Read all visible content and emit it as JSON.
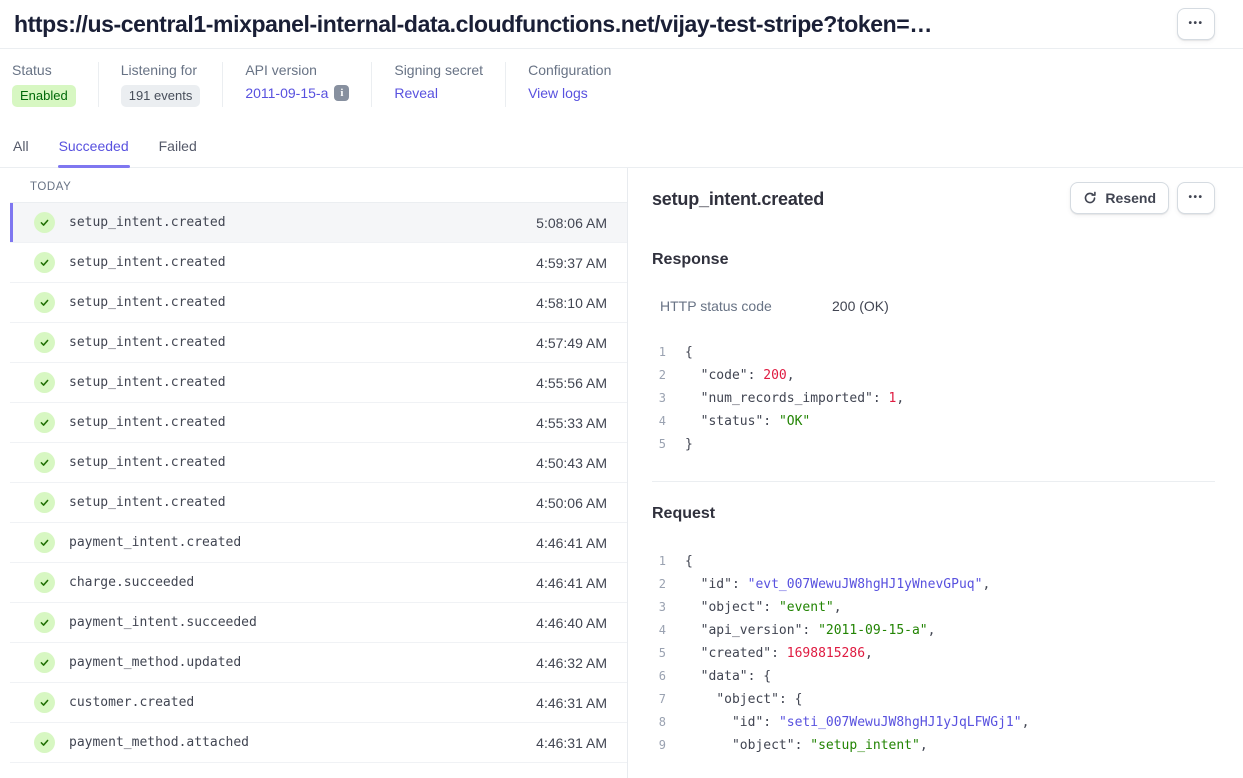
{
  "header": {
    "url": "https://us-central1-mixpanel-internal-data.cloudfunctions.net/vijay-test-stripe?token=…",
    "more_button": "•••"
  },
  "stats": {
    "status": {
      "label": "Status",
      "value": "Enabled"
    },
    "listening": {
      "label": "Listening for",
      "value": "191 events"
    },
    "api_version": {
      "label": "API version",
      "value": "2011-09-15-a"
    },
    "signing_secret": {
      "label": "Signing secret",
      "action": "Reveal"
    },
    "configuration": {
      "label": "Configuration",
      "action": "View logs"
    }
  },
  "tabs": [
    {
      "label": "All",
      "active": false
    },
    {
      "label": "Succeeded",
      "active": true
    },
    {
      "label": "Failed",
      "active": false
    }
  ],
  "event_list": {
    "group_label": "TODAY",
    "items": [
      {
        "name": "setup_intent.created",
        "time": "5:08:06 AM",
        "selected": true
      },
      {
        "name": "setup_intent.created",
        "time": "4:59:37 AM",
        "selected": false
      },
      {
        "name": "setup_intent.created",
        "time": "4:58:10 AM",
        "selected": false
      },
      {
        "name": "setup_intent.created",
        "time": "4:57:49 AM",
        "selected": false
      },
      {
        "name": "setup_intent.created",
        "time": "4:55:56 AM",
        "selected": false
      },
      {
        "name": "setup_intent.created",
        "time": "4:55:33 AM",
        "selected": false
      },
      {
        "name": "setup_intent.created",
        "time": "4:50:43 AM",
        "selected": false
      },
      {
        "name": "setup_intent.created",
        "time": "4:50:06 AM",
        "selected": false
      },
      {
        "name": "payment_intent.created",
        "time": "4:46:41 AM",
        "selected": false
      },
      {
        "name": "charge.succeeded",
        "time": "4:46:41 AM",
        "selected": false
      },
      {
        "name": "payment_intent.succeeded",
        "time": "4:46:40 AM",
        "selected": false
      },
      {
        "name": "payment_method.updated",
        "time": "4:46:32 AM",
        "selected": false
      },
      {
        "name": "customer.created",
        "time": "4:46:31 AM",
        "selected": false
      },
      {
        "name": "payment_method.attached",
        "time": "4:46:31 AM",
        "selected": false
      }
    ]
  },
  "detail": {
    "title": "setup_intent.created",
    "resend_button": "Resend",
    "more_button": "•••",
    "response": {
      "heading": "Response",
      "http_status_label": "HTTP status code",
      "http_status_value": "200 (OK)",
      "code": [
        [
          [
            "{",
            "p"
          ]
        ],
        [
          [
            "  ",
            "p"
          ],
          [
            "\"code\"",
            "k"
          ],
          [
            ": ",
            "p"
          ],
          [
            "200",
            "n"
          ],
          [
            ",",
            "p"
          ]
        ],
        [
          [
            "  ",
            "p"
          ],
          [
            "\"num_records_imported\"",
            "k"
          ],
          [
            ": ",
            "p"
          ],
          [
            "1",
            "n"
          ],
          [
            ",",
            "p"
          ]
        ],
        [
          [
            "  ",
            "p"
          ],
          [
            "\"status\"",
            "k"
          ],
          [
            ": ",
            "p"
          ],
          [
            "\"OK\"",
            "s"
          ]
        ],
        [
          [
            "}",
            "p"
          ]
        ]
      ]
    },
    "request": {
      "heading": "Request",
      "code": [
        [
          [
            "{",
            "p"
          ]
        ],
        [
          [
            "  ",
            "p"
          ],
          [
            "\"id\"",
            "k"
          ],
          [
            ": ",
            "p"
          ],
          [
            "\"evt_007WewuJW8hgHJ1yWnevGPuq\"",
            "i"
          ],
          [
            ",",
            "p"
          ]
        ],
        [
          [
            "  ",
            "p"
          ],
          [
            "\"object\"",
            "k"
          ],
          [
            ": ",
            "p"
          ],
          [
            "\"event\"",
            "s"
          ],
          [
            ",",
            "p"
          ]
        ],
        [
          [
            "  ",
            "p"
          ],
          [
            "\"api_version\"",
            "k"
          ],
          [
            ": ",
            "p"
          ],
          [
            "\"2011-09-15-a\"",
            "s"
          ],
          [
            ",",
            "p"
          ]
        ],
        [
          [
            "  ",
            "p"
          ],
          [
            "\"created\"",
            "k"
          ],
          [
            ": ",
            "p"
          ],
          [
            "1698815286",
            "n"
          ],
          [
            ",",
            "p"
          ]
        ],
        [
          [
            "  ",
            "p"
          ],
          [
            "\"data\"",
            "k"
          ],
          [
            ": {",
            "p"
          ]
        ],
        [
          [
            "    ",
            "p"
          ],
          [
            "\"object\"",
            "k"
          ],
          [
            ": {",
            "p"
          ]
        ],
        [
          [
            "      ",
            "p"
          ],
          [
            "\"id\"",
            "k"
          ],
          [
            ": ",
            "p"
          ],
          [
            "\"seti_007WewuJW8hgHJ1yJqLFWGj1\"",
            "i"
          ],
          [
            ",",
            "p"
          ]
        ],
        [
          [
            "      ",
            "p"
          ],
          [
            "\"object\"",
            "k"
          ],
          [
            ": ",
            "p"
          ],
          [
            "\"setup_intent\"",
            "s"
          ],
          [
            ",",
            "p"
          ]
        ]
      ]
    }
  },
  "icons": {
    "more": "ellipsis-icon",
    "resend": "refresh-icon",
    "api_version_info": "info-icon",
    "event_status": "check-icon"
  },
  "colors": {
    "accent": "#5851df",
    "accent_bar": "#7f77f0",
    "success_bg": "#d7f7c2",
    "success_text": "#006908",
    "num_red": "#df1b41",
    "str_green": "#228403",
    "id_blue": "#5851df"
  }
}
